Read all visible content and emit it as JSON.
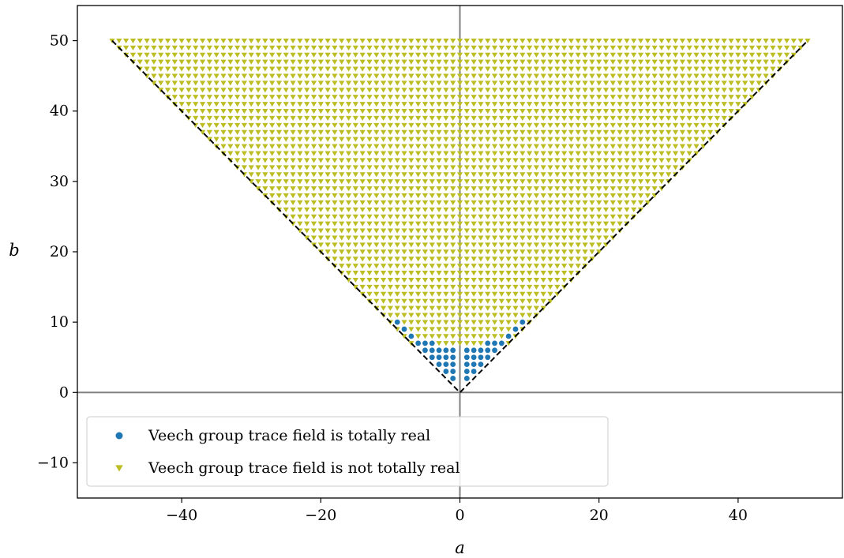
{
  "chart_data": {
    "type": "scatter",
    "title": "",
    "xlabel": "a",
    "ylabel": "b",
    "xlim": [
      -55,
      55
    ],
    "ylim": [
      -15,
      55
    ],
    "xticks": [
      -40,
      -20,
      0,
      20,
      40
    ],
    "yticks": [
      -10,
      0,
      10,
      20,
      30,
      40,
      50
    ],
    "xtick_labels": [
      "−40",
      "−20",
      "0",
      "20",
      "40"
    ],
    "ytick_labels": [
      "−10",
      "0",
      "10",
      "20",
      "30",
      "40",
      "50"
    ],
    "grid": false,
    "legend_position": "lower-left",
    "reference_lines": [
      {
        "kind": "axis",
        "x": [
          -55,
          55
        ],
        "y": [
          0,
          0
        ],
        "color": "#808080"
      },
      {
        "kind": "axis",
        "x": [
          0,
          0
        ],
        "y": [
          -15,
          55
        ],
        "color": "#808080"
      },
      {
        "kind": "boundary",
        "x": [
          -50,
          0,
          50
        ],
        "y": [
          50,
          0,
          50
        ],
        "style": "dashed",
        "color": "#000000"
      }
    ],
    "series": [
      {
        "name": "Veech group trace field is totally real",
        "marker": "circle",
        "color": "#1f77b4",
        "points": [
          [
            -1,
            2
          ],
          [
            1,
            2
          ],
          [
            -1,
            3
          ],
          [
            1,
            3
          ],
          [
            -2,
            3
          ],
          [
            2,
            3
          ],
          [
            -1,
            4
          ],
          [
            1,
            4
          ],
          [
            -2,
            4
          ],
          [
            2,
            4
          ],
          [
            -3,
            4
          ],
          [
            3,
            4
          ],
          [
            -1,
            5
          ],
          [
            1,
            5
          ],
          [
            -2,
            5
          ],
          [
            2,
            5
          ],
          [
            -3,
            5
          ],
          [
            3,
            5
          ],
          [
            -4,
            5
          ],
          [
            4,
            5
          ],
          [
            -1,
            6
          ],
          [
            1,
            6
          ],
          [
            -2,
            6
          ],
          [
            2,
            6
          ],
          [
            -3,
            6
          ],
          [
            3,
            6
          ],
          [
            -4,
            6
          ],
          [
            4,
            6
          ],
          [
            -5,
            6
          ],
          [
            5,
            6
          ],
          [
            -4,
            7
          ],
          [
            4,
            7
          ],
          [
            -5,
            7
          ],
          [
            5,
            7
          ],
          [
            -6,
            7
          ],
          [
            6,
            7
          ],
          [
            -7,
            8
          ],
          [
            7,
            8
          ],
          [
            -8,
            9
          ],
          [
            8,
            9
          ],
          [
            -9,
            10
          ],
          [
            9,
            10
          ]
        ]
      },
      {
        "name": "Veech group trace field is not totally real",
        "marker": "triangle-down",
        "color": "#bcbd22",
        "region": {
          "b_min": 7,
          "b_max": 50,
          "a_range": "|a| <= b"
        },
        "points": []
      }
    ]
  }
}
